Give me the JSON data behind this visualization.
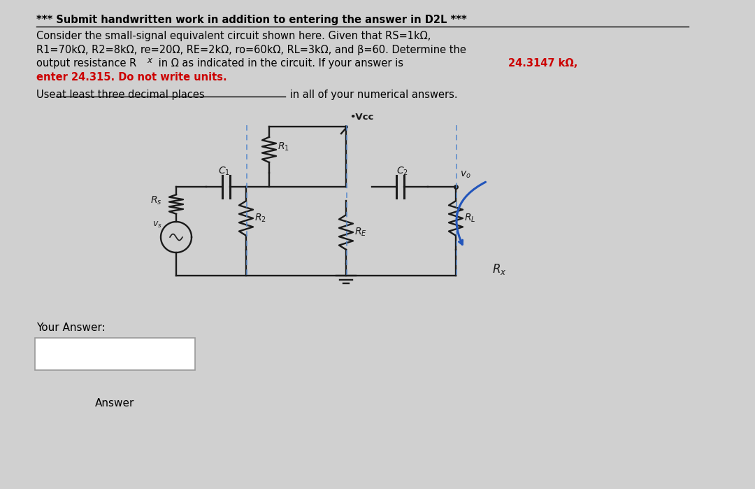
{
  "bg_color": "#d0d0d0",
  "title_text": "*** Submit handwritten work in addition to entering the answer in D2L ***",
  "body_line1": "Consider the small-signal equivalent circuit shown here. Given that RS=1kΩ,",
  "body_line2": "R1=70kΩ, R2=8kΩ, re=20Ω, RE=2kΩ, ro=60kΩ, RL=3kΩ, and β=60. Determine the",
  "body_line3a": "output resistance R",
  "body_line3b": "x",
  "body_line3c": " in Ω as indicated in the circuit. If your answer is ",
  "body_line3d": "24.3147 kΩ,",
  "body_line4": "enter 24.315. Do not write units.",
  "body_line5a": "Use ",
  "body_line5b": "at least three decimal places",
  "body_line5c": " in all of your numerical answers.",
  "answer_label": "Your Answer:",
  "answer_label2": "Answer",
  "cc": "#1a1a1a",
  "rc": "#cc0000",
  "bc": "#2255bb",
  "dc": "#5588cc"
}
